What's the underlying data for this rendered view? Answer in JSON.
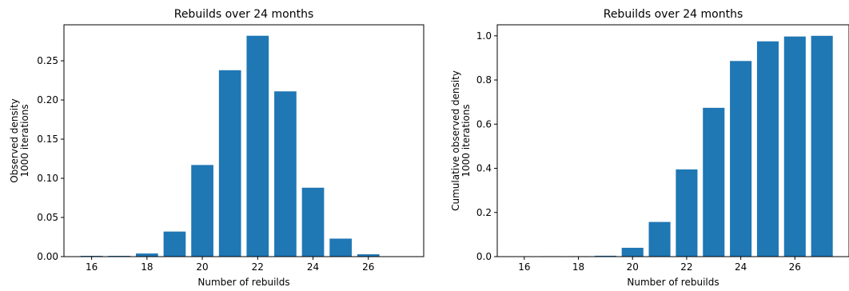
{
  "chart_data": [
    {
      "type": "bar",
      "title": "Rebuilds over 24 months",
      "xlabel": "Number of rebuilds",
      "ylabel": [
        "Observed density",
        "1000 iterations"
      ],
      "x": [
        16,
        17,
        18,
        19,
        20,
        21,
        22,
        23,
        24,
        25,
        26,
        27
      ],
      "values": [
        0.001,
        0.001,
        0.004,
        0.032,
        0.117,
        0.238,
        0.282,
        0.211,
        0.088,
        0.023,
        0.003,
        0.0005
      ],
      "xlim": [
        15,
        28
      ],
      "ylim": [
        0,
        0.296
      ],
      "xticks": [
        16,
        18,
        20,
        22,
        24,
        26
      ],
      "xtick_labels": [
        "16",
        "18",
        "20",
        "22",
        "24",
        "26"
      ],
      "yticks": [
        0,
        0.05,
        0.1,
        0.15,
        0.2,
        0.25
      ],
      "ytick_labels": [
        "0.00",
        "0.05",
        "0.10",
        "0.15",
        "0.20",
        "0.25"
      ],
      "grid": false,
      "color": "#1f77b4"
    },
    {
      "type": "bar",
      "title": "Rebuilds over 24 months",
      "xlabel": "Number of rebuilds",
      "ylabel": [
        "Cumulative observed density",
        "1000 iterations"
      ],
      "x": [
        16,
        17,
        18,
        19,
        20,
        21,
        22,
        23,
        24,
        25,
        26,
        27
      ],
      "values": [
        0.001,
        0.002,
        0.002,
        0.004,
        0.04,
        0.157,
        0.395,
        0.674,
        0.886,
        0.975,
        0.997,
        1.0
      ],
      "xlim": [
        15,
        28
      ],
      "ylim": [
        0,
        1.05
      ],
      "xticks": [
        16,
        18,
        20,
        22,
        24,
        26
      ],
      "xtick_labels": [
        "16",
        "18",
        "20",
        "22",
        "24",
        "26"
      ],
      "yticks": [
        0,
        0.2,
        0.4,
        0.6,
        0.8,
        1.0
      ],
      "ytick_labels": [
        "0.0",
        "0.2",
        "0.4",
        "0.6",
        "0.8",
        "1.0"
      ],
      "grid": false,
      "color": "#1f77b4"
    }
  ]
}
